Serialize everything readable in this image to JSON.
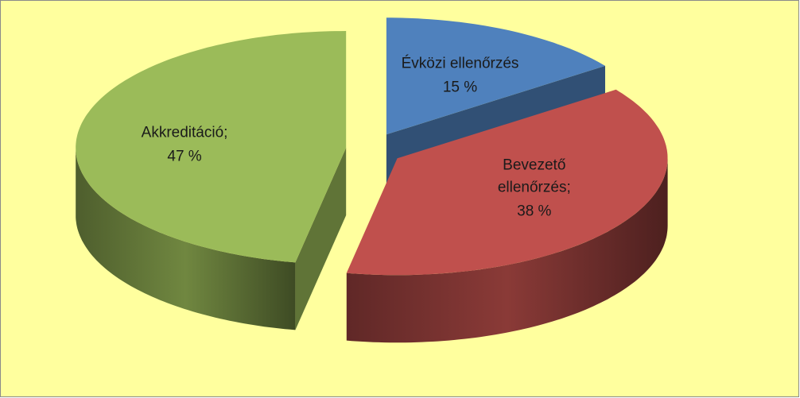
{
  "chart_data": {
    "type": "pie",
    "categories": [
      "Évközi ellenőrzés",
      "Bevezető ellenőrzés;",
      "Akkreditáció;"
    ],
    "values": [
      15,
      38,
      47
    ],
    "value_labels": [
      "15 %",
      "38 %",
      "47 %"
    ],
    "colors": [
      "#4f81bd",
      "#c0504d",
      "#9bbb59"
    ],
    "style": "3d-exploded"
  }
}
